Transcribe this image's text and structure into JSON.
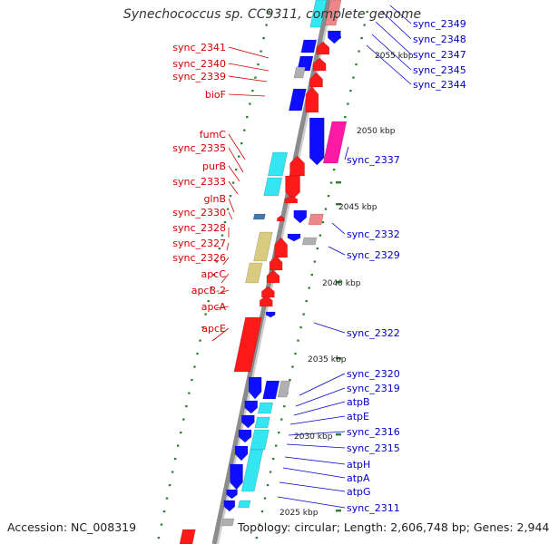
{
  "title": "Synechococcus sp. CC9311, complete genome",
  "footer": {
    "accession": "Accession: NC_008319",
    "topology": "Topology: circular; Length: 2,606,748 bp; Genes: 2,944"
  },
  "colors": {
    "backbone": "#8c8c8c",
    "tick": "#2e7d2e",
    "label_red": "#d40000",
    "label_blue": "#0000c8",
    "gene_red": "#ff1a1a",
    "gene_blue": "#0d0dff",
    "gene_cyan": "#33e6f2",
    "gene_magenta": "#ff1aa6",
    "gene_khaki": "#d9cc80",
    "gene_pink": "#ee8888",
    "gene_slate": "#4477aa",
    "gene_gray": "#b0b0b0"
  },
  "kbp_labels": [
    "2055 kbp",
    "2050 kbp",
    "2045 kbp",
    "2040 kbp",
    "2035 kbp",
    "2030 kbp",
    "2025 kbp"
  ],
  "left_labels": [
    "sync_2341",
    "sync_2340",
    "sync_2339",
    "bioF",
    "fumC",
    "sync_2335",
    "purB",
    "sync_2333",
    "glnB",
    "sync_2330",
    "sync_2328",
    "sync_2327",
    "sync_2326",
    "apcC",
    "apcB-2",
    "apcA",
    "apcE"
  ],
  "right_labels": [
    "sync_2349",
    "sync_2348",
    "sync_2347",
    "sync_2345",
    "sync_2344",
    "sync_2337",
    "sync_2332",
    "sync_2329",
    "sync_2322",
    "sync_2320",
    "sync_2319",
    "atpB",
    "atpE",
    "sync_2316",
    "sync_2315",
    "atpH",
    "atpA",
    "atpG",
    "sync_2311"
  ]
}
